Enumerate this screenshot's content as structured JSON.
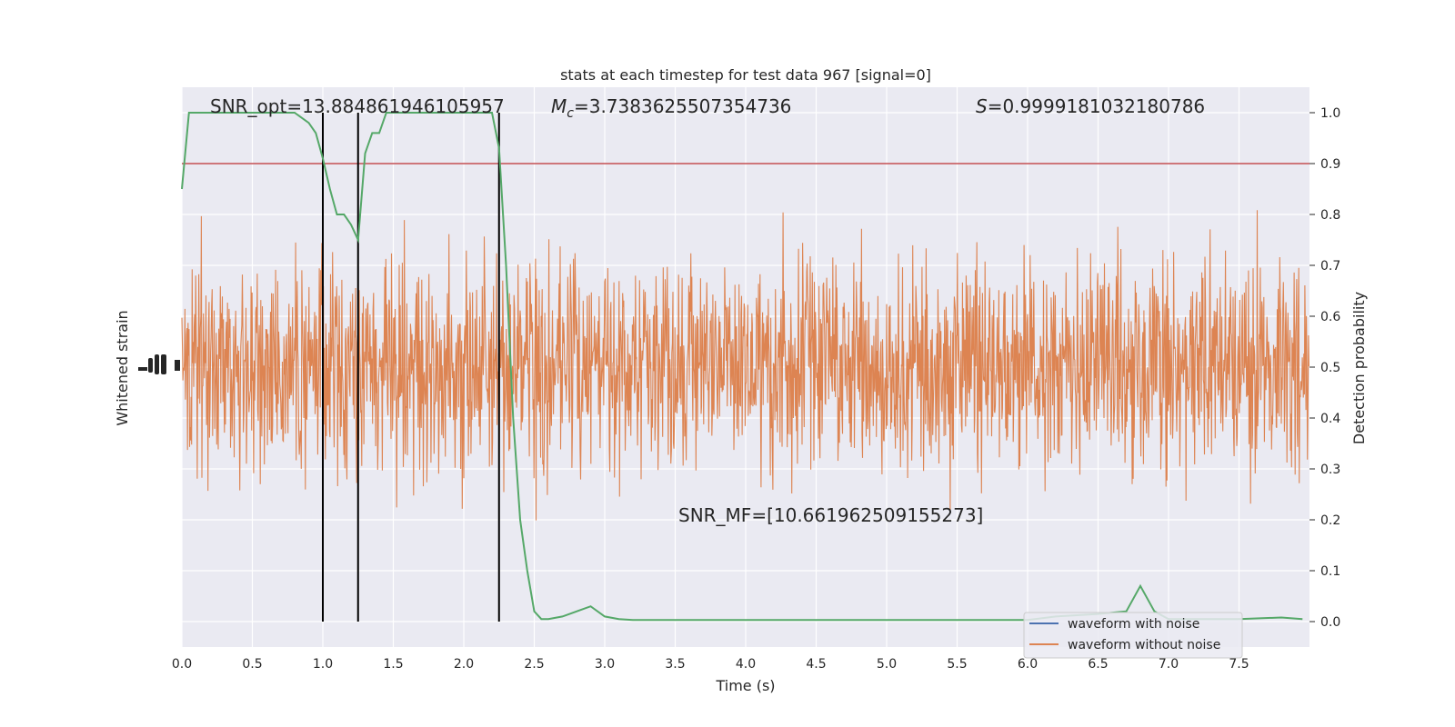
{
  "chart_data": {
    "type": "line",
    "title": "stats at each timestep for test data 967 [signal=0]",
    "xlabel": "Time (s)",
    "ylabel_left": "Whitened strain",
    "ylabel_right": "Detection probability",
    "xlim": [
      0.0,
      8.0
    ],
    "ylim_right": [
      -0.05,
      1.05
    ],
    "x_ticks": [
      "0.0",
      "0.5",
      "1.0",
      "1.5",
      "2.0",
      "2.5",
      "3.0",
      "3.5",
      "4.0",
      "4.5",
      "5.0",
      "5.5",
      "6.0",
      "6.5",
      "7.0",
      "7.5"
    ],
    "x_tick_values": [
      0,
      0.5,
      1,
      1.5,
      2,
      2.5,
      3,
      3.5,
      4,
      4.5,
      5,
      5.5,
      6,
      6.5,
      7,
      7.5
    ],
    "y_right_ticks": [
      "0.0",
      "0.1",
      "0.2",
      "0.3",
      "0.4",
      "0.5",
      "0.6",
      "0.7",
      "0.8",
      "0.9",
      "1.0"
    ],
    "y_right_tick_values": [
      0,
      0.1,
      0.2,
      0.3,
      0.4,
      0.5,
      0.6,
      0.7,
      0.8,
      0.9,
      1.0
    ],
    "grid": true,
    "legend_position": "bottom-right",
    "annotations": {
      "snr_opt": "SNR_opt=13.884861946105957",
      "mc_symbol": "M",
      "mc_sub": "c",
      "mc_value": "=3.7383625507354736",
      "s_symbol": "S",
      "s_value": "=0.9999181032180786",
      "snr_mf": "SNR_MF=[10.661962509155273]"
    },
    "threshold": 0.9,
    "vertical_markers": [
      1.0,
      1.25,
      2.25
    ],
    "series": [
      {
        "name": "waveform with noise",
        "color": "#4c72b0"
      },
      {
        "name": "waveform without noise",
        "color": "#dd8452"
      },
      {
        "color": "#55a868",
        "x": [
          0.0,
          0.05,
          0.1,
          0.2,
          0.4,
          0.6,
          0.8,
          0.9,
          0.95,
          1.0,
          1.05,
          1.1,
          1.15,
          1.2,
          1.25,
          1.3,
          1.35,
          1.4,
          1.45,
          1.5,
          1.6,
          1.8,
          2.0,
          2.2,
          2.25,
          2.3,
          2.35,
          2.4,
          2.45,
          2.5,
          2.55,
          2.6,
          2.7,
          2.8,
          2.9,
          3.0,
          3.1,
          3.2,
          3.5,
          4.0,
          4.5,
          5.0,
          5.5,
          6.0,
          6.2,
          6.5,
          6.7,
          6.8,
          6.9,
          7.0,
          7.2,
          7.5,
          7.8,
          7.95
        ],
        "y": [
          0.85,
          1.0,
          1.0,
          1.0,
          1.0,
          1.0,
          1.0,
          0.98,
          0.96,
          0.91,
          0.85,
          0.8,
          0.8,
          0.78,
          0.75,
          0.92,
          0.96,
          0.96,
          1.0,
          1.0,
          1.0,
          1.0,
          1.0,
          1.0,
          0.93,
          0.7,
          0.4,
          0.2,
          0.1,
          0.02,
          0.005,
          0.005,
          0.01,
          0.02,
          0.03,
          0.01,
          0.005,
          0.003,
          0.003,
          0.003,
          0.003,
          0.003,
          0.003,
          0.003,
          0.01,
          0.015,
          0.02,
          0.07,
          0.02,
          0.005,
          0.005,
          0.005,
          0.008,
          0.005
        ]
      }
    ]
  }
}
